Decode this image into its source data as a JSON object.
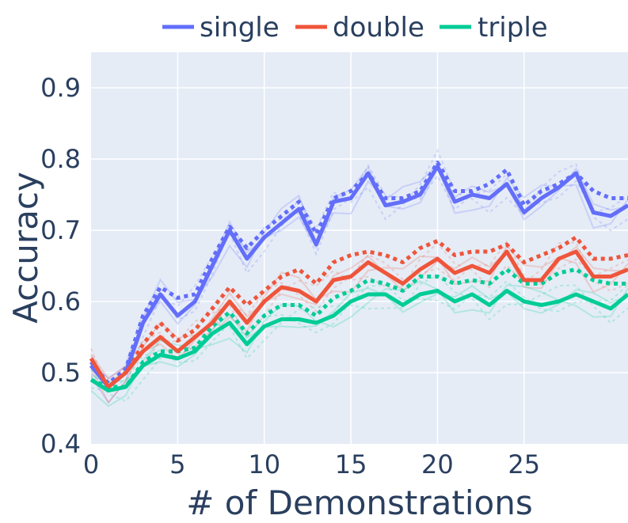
{
  "chart_data": {
    "type": "line",
    "xlabel": "# of Demonstrations",
    "ylabel": "Accuracy",
    "xlim": [
      0,
      31
    ],
    "ylim": [
      0.4,
      0.95
    ],
    "xticks": [
      0,
      5,
      10,
      15,
      20,
      25
    ],
    "xtick_labels": [
      "0",
      "5",
      "10",
      "15",
      "20",
      "25"
    ],
    "yticks": [
      0.4,
      0.5,
      0.6,
      0.7,
      0.8,
      0.9
    ],
    "ytick_labels": [
      "0.4",
      "0.5",
      "0.6",
      "0.7",
      "0.8",
      "0.9"
    ],
    "grid": true,
    "legend_position": "top",
    "x": [
      0,
      1,
      2,
      3,
      4,
      5,
      6,
      7,
      8,
      9,
      10,
      11,
      12,
      13,
      14,
      15,
      16,
      17,
      18,
      19,
      20,
      21,
      22,
      23,
      24,
      25,
      26,
      27,
      28,
      29,
      30,
      31
    ],
    "series": [
      {
        "name": "single",
        "color": "#636efa",
        "values": [
          0.51,
          0.48,
          0.5,
          0.57,
          0.61,
          0.58,
          0.6,
          0.65,
          0.7,
          0.66,
          0.69,
          0.71,
          0.73,
          0.68,
          0.74,
          0.745,
          0.78,
          0.735,
          0.74,
          0.75,
          0.79,
          0.74,
          0.75,
          0.745,
          0.765,
          0.725,
          0.745,
          0.76,
          0.78,
          0.725,
          0.72,
          0.735
        ],
        "dotted_values": [
          0.515,
          0.485,
          0.505,
          0.58,
          0.62,
          0.605,
          0.61,
          0.66,
          0.705,
          0.675,
          0.7,
          0.72,
          0.74,
          0.695,
          0.745,
          0.755,
          0.78,
          0.745,
          0.745,
          0.755,
          0.795,
          0.755,
          0.755,
          0.765,
          0.785,
          0.735,
          0.755,
          0.765,
          0.78,
          0.755,
          0.745,
          0.745
        ]
      },
      {
        "name": "double",
        "color": "#ef553b",
        "values": [
          0.52,
          0.48,
          0.5,
          0.53,
          0.55,
          0.53,
          0.55,
          0.57,
          0.6,
          0.57,
          0.6,
          0.62,
          0.615,
          0.6,
          0.63,
          0.635,
          0.655,
          0.64,
          0.625,
          0.645,
          0.66,
          0.64,
          0.65,
          0.64,
          0.67,
          0.63,
          0.63,
          0.66,
          0.67,
          0.635,
          0.635,
          0.645
        ],
        "dotted_values": [
          0.51,
          0.48,
          0.5,
          0.54,
          0.57,
          0.545,
          0.56,
          0.59,
          0.62,
          0.595,
          0.615,
          0.635,
          0.645,
          0.625,
          0.655,
          0.665,
          0.67,
          0.665,
          0.655,
          0.675,
          0.685,
          0.665,
          0.67,
          0.67,
          0.68,
          0.655,
          0.665,
          0.675,
          0.69,
          0.66,
          0.66,
          0.665
        ]
      },
      {
        "name": "triple",
        "color": "#00cc96",
        "values": [
          0.49,
          0.475,
          0.48,
          0.51,
          0.525,
          0.52,
          0.53,
          0.555,
          0.57,
          0.54,
          0.565,
          0.575,
          0.575,
          0.57,
          0.58,
          0.6,
          0.61,
          0.61,
          0.595,
          0.61,
          0.615,
          0.6,
          0.61,
          0.595,
          0.615,
          0.6,
          0.595,
          0.6,
          0.61,
          0.6,
          0.59,
          0.61
        ],
        "dotted_values": [
          0.49,
          0.48,
          0.48,
          0.515,
          0.53,
          0.53,
          0.535,
          0.565,
          0.585,
          0.555,
          0.58,
          0.595,
          0.595,
          0.58,
          0.605,
          0.615,
          0.63,
          0.625,
          0.615,
          0.635,
          0.635,
          0.625,
          0.63,
          0.625,
          0.645,
          0.625,
          0.625,
          0.64,
          0.645,
          0.63,
          0.625,
          0.625
        ]
      }
    ],
    "legend": {
      "items": [
        {
          "label": "single",
          "color": "#636efa"
        },
        {
          "label": "double",
          "color": "#ef553b"
        },
        {
          "label": "triple",
          "color": "#00cc96"
        }
      ]
    }
  }
}
